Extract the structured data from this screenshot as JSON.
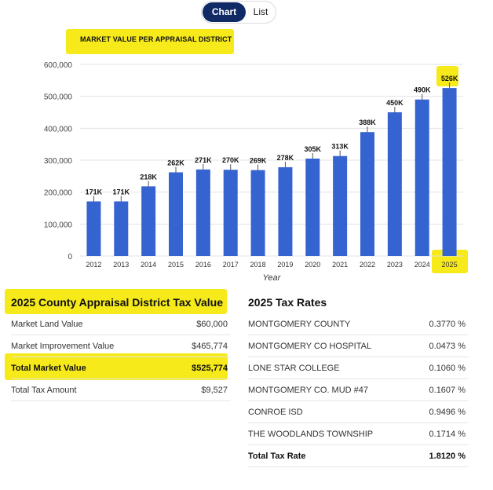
{
  "toggle": {
    "chart_label": "Chart",
    "list_label": "List"
  },
  "chart_title": "MARKET VALUE PER APPRAISAL DISTRICT",
  "chart_data": {
    "type": "bar",
    "categories": [
      "2012",
      "2013",
      "2014",
      "2015",
      "2016",
      "2017",
      "2018",
      "2019",
      "2020",
      "2021",
      "2022",
      "2023",
      "2024",
      "2025"
    ],
    "values": [
      171000,
      171000,
      218000,
      262000,
      271000,
      270000,
      269000,
      278000,
      305000,
      313000,
      388000,
      450000,
      490000,
      526000
    ],
    "data_labels": [
      "171K",
      "171K",
      "218K",
      "262K",
      "271K",
      "270K",
      "269K",
      "278K",
      "305K",
      "313K",
      "388K",
      "450K",
      "490K",
      "526K"
    ],
    "xlabel": "Year",
    "ylabel": "",
    "ylim": [
      0,
      600000
    ],
    "yticks": [
      "600,000",
      "500,000",
      "400,000",
      "300,000",
      "200,000",
      "100,000",
      "0"
    ],
    "ytick_values": [
      600000,
      500000,
      400000,
      300000,
      200000,
      100000,
      0
    ],
    "bar_color": "#3563d0",
    "grid": true
  },
  "appraisal": {
    "title": "2025 County Appraisal District Tax Value",
    "rows": [
      {
        "label": "Market Land Value",
        "value": "$60,000"
      },
      {
        "label": "Market Improvement Value",
        "value": "$465,774"
      },
      {
        "label": "Total Market Value",
        "value": "$525,774"
      },
      {
        "label": "Total Tax Amount",
        "value": "$9,527"
      }
    ]
  },
  "tax_rates": {
    "title": "2025 Tax Rates",
    "rows": [
      {
        "label": "MONTGOMERY COUNTY",
        "value": "0.3770 %"
      },
      {
        "label": "MONTGOMERY CO HOSPITAL",
        "value": "0.0473 %"
      },
      {
        "label": "LONE STAR COLLEGE",
        "value": "0.1060 %"
      },
      {
        "label": "MONTGOMERY CO. MUD #47",
        "value": "0.1607 %"
      },
      {
        "label": "CONROE ISD",
        "value": "0.9496 %"
      },
      {
        "label": "THE WOODLANDS TOWNSHIP",
        "value": "0.1714 %"
      },
      {
        "label": "Total Tax Rate",
        "value": "1.8120 %"
      }
    ]
  },
  "highlight_color": "#f6ea1a"
}
